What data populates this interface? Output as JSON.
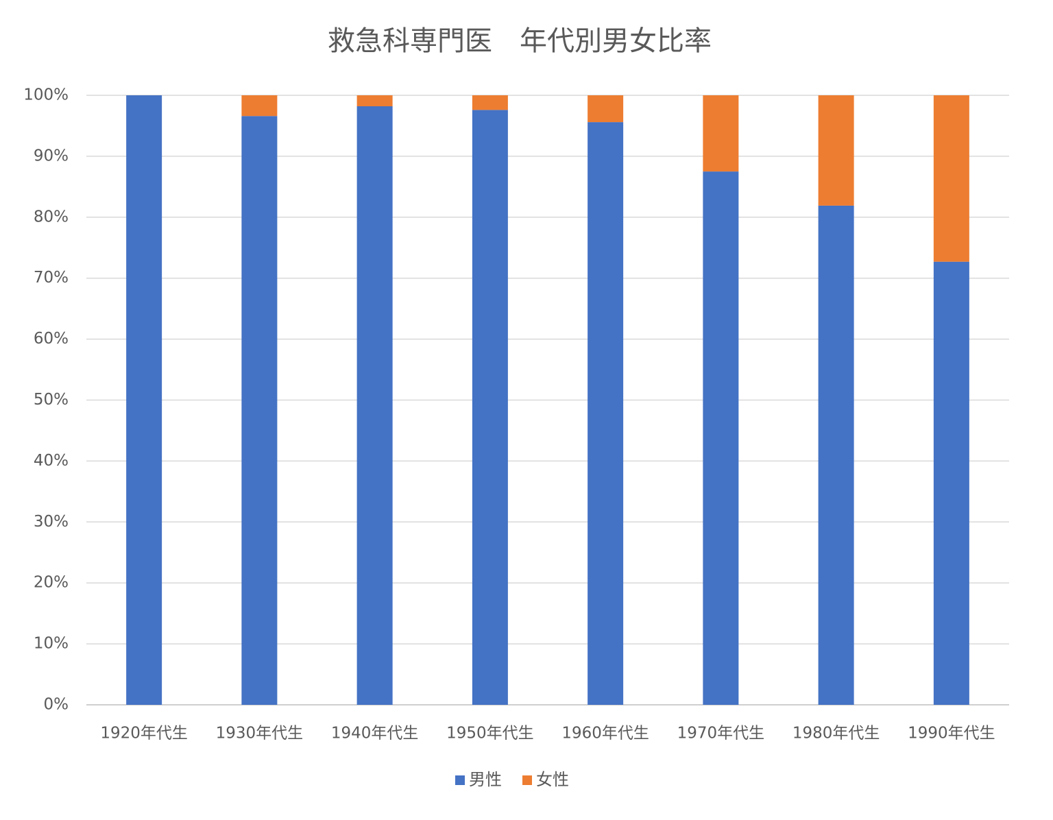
{
  "chart_data": {
    "type": "stacked_bar",
    "title": "救急科専門医　年代別男女比率",
    "categories": [
      "1920年代生",
      "1930年代生",
      "1940年代生",
      "1950年代生",
      "1960年代生",
      "1970年代生",
      "1980年代生",
      "1990年代生"
    ],
    "series": [
      {
        "name": "男性",
        "color": "#4472c4",
        "values": [
          100,
          96.6,
          98.2,
          97.6,
          95.6,
          87.5,
          81.9,
          72.7
        ]
      },
      {
        "name": "女性",
        "color": "#ed7d31",
        "values": [
          0,
          3.4,
          1.8,
          2.4,
          4.4,
          12.5,
          18.1,
          27.3
        ]
      }
    ],
    "ylim": [
      0,
      100
    ],
    "yticks": [
      {
        "value": 0,
        "label": "0%"
      },
      {
        "value": 10,
        "label": "10%"
      },
      {
        "value": 20,
        "label": "20%"
      },
      {
        "value": 30,
        "label": "30%"
      },
      {
        "value": 40,
        "label": "40%"
      },
      {
        "value": 50,
        "label": "50%"
      },
      {
        "value": 60,
        "label": "60%"
      },
      {
        "value": 70,
        "label": "70%"
      },
      {
        "value": 80,
        "label": "80%"
      },
      {
        "value": 90,
        "label": "90%"
      },
      {
        "value": 100,
        "label": "100%"
      }
    ],
    "grid": true,
    "legend": "bottom"
  }
}
